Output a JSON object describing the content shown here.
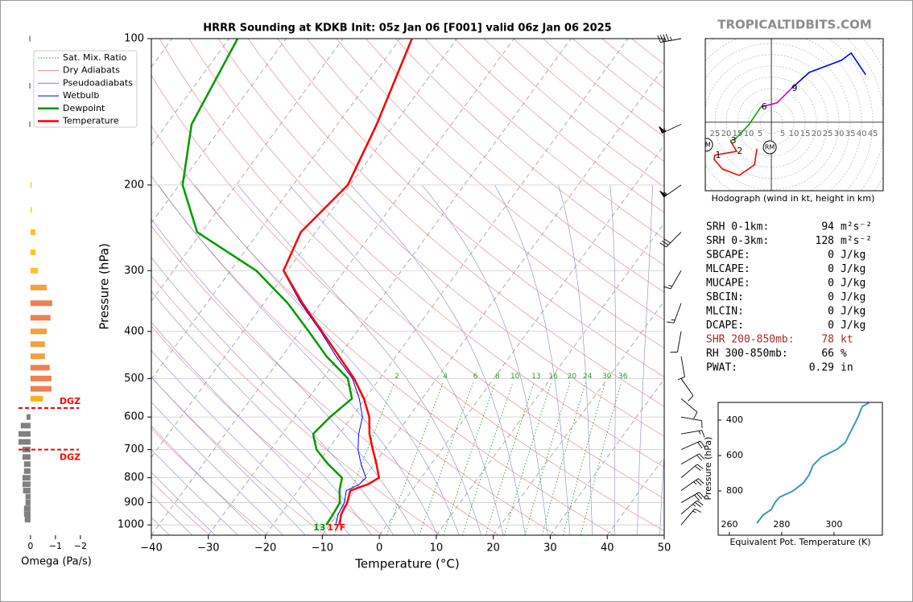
{
  "header": {
    "site": "TROPICALTIDBITS.COM"
  },
  "chart_data": [
    {
      "type": "skewt",
      "title": "HRRR Sounding at KDKB Init: 05z Jan 06 [F001] valid 06z Jan 06 2025",
      "x_label": "Temperature (°C)",
      "y_label": "Pressure (hPa)",
      "xlim": [
        -40,
        50
      ],
      "ylim": [
        1050,
        100
      ],
      "log_y": true,
      "grid": true,
      "legend": "upper left",
      "xticks": [
        {
          "value": -40,
          "label": "−40"
        },
        {
          "value": -30,
          "label": "−30"
        },
        {
          "value": -20,
          "label": "−20"
        },
        {
          "value": -10,
          "label": "−10"
        },
        0,
        10,
        20,
        30,
        40,
        50
      ],
      "yticks": [
        100,
        200,
        300,
        400,
        500,
        600,
        700,
        800,
        900,
        1000
      ],
      "reference_lines": [
        {
          "name": "Sat. Mix. Ratio",
          "color": "#2ca02c",
          "style": "dotted"
        },
        {
          "name": "Dry Adiabats",
          "color": "#e08080",
          "style": "solid"
        },
        {
          "name": "Pseudoadiabats",
          "color": "#8888cc",
          "style": "solid"
        }
      ],
      "mixing_ratios": [
        2,
        4,
        6,
        8,
        10,
        13,
        16,
        20,
        24,
        30,
        36
      ],
      "pressure": [
        1000,
        950,
        900,
        850,
        825,
        800,
        750,
        700,
        650,
        600,
        550,
        500,
        450,
        400,
        350,
        300,
        250,
        200,
        150,
        100
      ],
      "series": [
        {
          "name": "Wetbulb",
          "color": "#0000ff",
          "width": 1,
          "values": [
            -9.0,
            -9.9,
            -10.3,
            -11.5,
            -10.0,
            -9.7,
            -12.3,
            -14.7,
            -16.6,
            -18.1,
            -21.0,
            -24.8,
            -30.5,
            -36.4,
            -43.5,
            -50.8,
            -52.7,
            -50.5,
            -53.2,
            -58.0
          ]
        },
        {
          "name": "Dewpoint",
          "color": "#009900",
          "width": 2.5,
          "values": [
            -10.6,
            -10.8,
            -11.1,
            -12.7,
            -13.3,
            -13.9,
            -18.1,
            -22.0,
            -24.6,
            -23.8,
            -22.3,
            -25.6,
            -32.2,
            -38.5,
            -45.8,
            -55.5,
            -70.8,
            -79.4,
            -85.6,
            -88.5
          ]
        },
        {
          "name": "Temperature",
          "color": "#ff0000",
          "width": 2.5,
          "values": [
            -8.3,
            -9.4,
            -9.8,
            -10.8,
            -8.5,
            -7.4,
            -9.6,
            -12.1,
            -14.7,
            -16.9,
            -20.2,
            -24.5,
            -30.0,
            -36.2,
            -43.2,
            -50.7,
            -52.6,
            -50.4,
            -53.1,
            -57.9
          ]
        }
      ],
      "surface_labels": {
        "dewpoint": "13",
        "temperature": "17F"
      },
      "winds": {
        "pressure": [
          1000,
          950,
          900,
          850,
          800,
          750,
          700,
          650,
          600,
          550,
          500,
          450,
          400,
          350,
          300,
          250,
          200,
          150,
          100
        ],
        "direction": [
          40,
          50,
          60,
          55,
          50,
          60,
          66,
          80,
          100,
          130,
          145,
          170,
          190,
          200,
          210,
          225,
          235,
          245,
          260
        ],
        "speed": [
          15,
          25,
          29,
          25,
          20,
          20,
          20,
          15,
          10,
          10,
          9,
          10,
          12,
          15,
          17,
          30,
          55,
          55,
          45
        ]
      }
    },
    {
      "type": "omega",
      "x_label": "Omega (Pa/s)",
      "xlim": [
        0.48,
        -2.23
      ],
      "ylim": [
        1050,
        100
      ],
      "log_y": true,
      "xticks": [
        0,
        {
          "value": -1,
          "label": "−1"
        },
        {
          "value": -2,
          "label": "−2"
        }
      ],
      "pressure": [
        100,
        125,
        150,
        200,
        225,
        250,
        275,
        300,
        325,
        350,
        375,
        400,
        425,
        450,
        475,
        500,
        525,
        550,
        600,
        625,
        650,
        675,
        700,
        725,
        750,
        775,
        800,
        825,
        850,
        875,
        900,
        925,
        950,
        975
      ],
      "values": [
        0.05,
        0.05,
        0.05,
        -0.05,
        -0.06,
        -0.2,
        -0.2,
        -0.3,
        -0.65,
        -0.87,
        -0.8,
        -0.65,
        -0.58,
        -0.58,
        -0.77,
        -0.84,
        -0.84,
        -0.5,
        0.16,
        0.39,
        0.48,
        0.48,
        0.32,
        0.32,
        0.26,
        0.26,
        0.32,
        0.32,
        0.3,
        0.2,
        0.2,
        0.26,
        0.26,
        0.23
      ],
      "colors": [
        "#808080",
        "#808080",
        "#808080",
        "#ffd700",
        "#ffd700",
        "#ffc125",
        "#ffc125",
        "#ffc125",
        "#f4a040",
        "#ef7f50",
        "#ef7f50",
        "#f4a040",
        "#f4a040",
        "#f4a040",
        "#ef7f50",
        "#ef7f50",
        "#ef7f50",
        "#ffb020",
        "#808080",
        "#808080",
        "#808080",
        "#808080",
        "#808080",
        "#808080",
        "#808080",
        "#808080",
        "#808080",
        "#808080",
        "#808080",
        "#808080",
        "#808080",
        "#808080",
        "#808080",
        "#808080"
      ],
      "dgz_color": "#ff0000",
      "dgz": [
        {
          "pressure": 575,
          "label": "DGZ"
        },
        {
          "pressure": 700,
          "label": "DGZ"
        }
      ]
    },
    {
      "type": "hodograph",
      "caption": "Hodograph (wind in kt, height in km)",
      "xlim": [
        -29.3,
        49.6
      ],
      "ylim": [
        -30.4,
        37.1
      ],
      "xticks": [
        {
          "value": -25,
          "label": "25"
        },
        {
          "value": -20,
          "label": "20"
        },
        {
          "value": -15,
          "label": "15"
        },
        {
          "value": -10,
          "label": "10"
        },
        {
          "value": -5,
          "label": "5"
        },
        5,
        10,
        15,
        20,
        25,
        30,
        35,
        40,
        45
      ],
      "series": [
        {
          "color": "#ff0000",
          "u": [
            -6.4,
            -7.5,
            -14.3,
            -21.8,
            -25.4,
            -25.0,
            -15.4,
            -18.2
          ],
          "v": [
            -11.8,
            -18.9,
            -23.6,
            -20.7,
            -16.4,
            -14.6,
            -12.9,
            -8.2
          ]
        },
        {
          "color": "#00aa00",
          "u": [
            -18.2,
            -16.1,
            -10.0,
            -4.6
          ],
          "v": [
            -8.2,
            -7.5,
            -1.1,
            6.8
          ]
        },
        {
          "color": "#cc00cc",
          "u": [
            -4.6,
            2.5,
            8.9
          ],
          "v": [
            6.8,
            8.6,
            15.0
          ]
        },
        {
          "color": "#0000ff",
          "u": [
            8.9,
            16.8,
            31.1,
            35.4,
            41.8
          ],
          "v": [
            15.0,
            22.1,
            27.5,
            30.7,
            21.1
          ]
        }
      ],
      "height_labels": [
        {
          "label": "1",
          "u": -25.0,
          "v": -14.6
        },
        {
          "label": "2",
          "u": -15.4,
          "v": -12.9
        },
        {
          "label": "3",
          "u": -18.2,
          "v": -8.2
        },
        {
          "label": "6",
          "u": -4.6,
          "v": 6.8
        },
        {
          "label": "9",
          "u": 8.9,
          "v": 15.0
        }
      ],
      "storm_motion": [
        {
          "label": "LM",
          "u": -28.9,
          "v": -10.0
        },
        {
          "label": "RM",
          "u": -0.7,
          "v": -11.1
        }
      ]
    },
    {
      "type": "line",
      "x_label": "Equivalent Pot. Temperature (K)",
      "y_label": "Pressure (hPa)",
      "xlim": [
        255.7,
        318.5
      ],
      "ylim": [
        1050,
        300
      ],
      "xticks": [
        260,
        280,
        300
      ],
      "yticks": [
        400,
        600,
        800
      ],
      "color": "#3a9ab0",
      "theta_e": [
        270.5,
        272.9,
        276.0,
        277.5,
        279.1,
        284.3,
        288.3,
        290.5,
        292.0,
        295.1,
        301.2,
        304.3,
        305.8,
        307.4,
        309.2,
        310.8,
        313.5
      ],
      "pressure": [
        982,
        936,
        905,
        864,
        836,
        800,
        755,
        709,
        655,
        609,
        564,
        527,
        482,
        436,
        382,
        323,
        300
      ]
    }
  ],
  "stats": [
    {
      "label": "SRH 0-1km:",
      "value": 94,
      "unit": "m²s⁻²"
    },
    {
      "label": "SRH 0-3km:",
      "value": 128,
      "unit": "m²s⁻²"
    },
    {
      "label": "SBCAPE:",
      "value": 0,
      "unit": "J/kg"
    },
    {
      "label": "MLCAPE:",
      "value": 0,
      "unit": "J/kg"
    },
    {
      "label": "MUCAPE:",
      "value": 0,
      "unit": "J/kg"
    },
    {
      "label": "SBCIN:",
      "value": 0,
      "unit": "J/kg"
    },
    {
      "label": "MLCIN:",
      "value": 0,
      "unit": "J/kg"
    },
    {
      "label": "DCAPE:",
      "value": 0,
      "unit": "J/kg"
    },
    {
      "label": "SHR 200-850mb:",
      "value": 78,
      "unit": "kt",
      "color": "#a52a2a"
    },
    {
      "label": "RH 300-850mb:",
      "value": 66,
      "unit": "%"
    },
    {
      "label": "PWAT:",
      "value": 0.29,
      "unit": "in"
    }
  ]
}
